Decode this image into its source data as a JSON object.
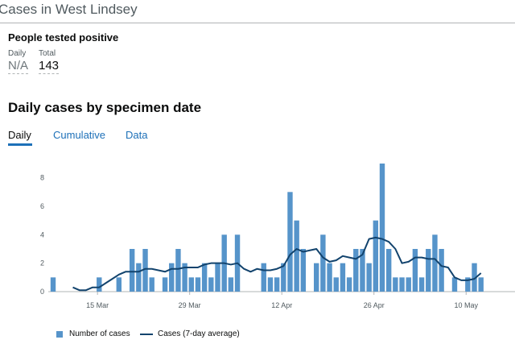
{
  "header": {
    "title": "Cases in West Lindsey"
  },
  "summary": {
    "title": "People tested positive",
    "daily_label": "Daily",
    "daily_value": "N/A",
    "total_label": "Total",
    "total_value": "143"
  },
  "chart_section": {
    "heading": "Daily cases by specimen date",
    "tabs": [
      "Daily",
      "Cumulative",
      "Data"
    ],
    "active_tab": "Daily"
  },
  "colors": {
    "bar": "#5694ca",
    "line": "#12436d",
    "tab": "#1d70b8"
  },
  "chart_data": {
    "type": "bar",
    "x_start": "2021-03-08",
    "x_ticks": [
      "15 Mar",
      "29 Mar",
      "12 Apr",
      "26 Apr",
      "10 May"
    ],
    "ylim": [
      0,
      9
    ],
    "y_ticks": [
      0,
      2,
      4,
      6,
      8
    ],
    "grid": false,
    "legend_position": "bottom-left",
    "series": [
      {
        "name": "Number of cases",
        "type": "bar",
        "values": [
          1,
          0,
          0,
          0,
          0,
          0,
          0,
          1,
          0,
          0,
          1,
          0,
          3,
          2,
          3,
          1,
          0,
          1,
          2,
          3,
          2,
          1,
          1,
          2,
          1,
          2,
          4,
          1,
          4,
          0,
          0,
          0,
          2,
          1,
          1,
          2,
          7,
          5,
          3,
          0,
          2,
          4,
          2,
          1,
          2,
          1,
          3,
          3,
          2,
          5,
          9,
          3,
          1,
          1,
          1,
          3,
          1,
          3,
          4,
          3,
          0,
          1,
          0,
          1,
          2,
          1
        ]
      },
      {
        "name": "Cases (7-day average)",
        "type": "line",
        "values": [
          null,
          null,
          null,
          0.3,
          0.1,
          0.1,
          0.3,
          0.3,
          0.6,
          0.9,
          1.2,
          1.4,
          1.4,
          1.4,
          1.6,
          1.6,
          1.5,
          1.4,
          1.6,
          1.6,
          1.7,
          1.7,
          1.7,
          1.9,
          2.0,
          2.0,
          2.0,
          1.9,
          2.0,
          1.6,
          1.4,
          1.6,
          1.5,
          1.5,
          1.6,
          1.8,
          2.6,
          3.0,
          2.8,
          2.9,
          3.0,
          2.4,
          2.1,
          2.2,
          2.5,
          2.4,
          2.3,
          2.6,
          3.7,
          3.8,
          3.7,
          3.5,
          3.0,
          2.0,
          2.1,
          2.4,
          2.4,
          2.3,
          2.3,
          1.8,
          1.7,
          1.0,
          0.8,
          0.8,
          0.9,
          1.3
        ]
      }
    ]
  }
}
